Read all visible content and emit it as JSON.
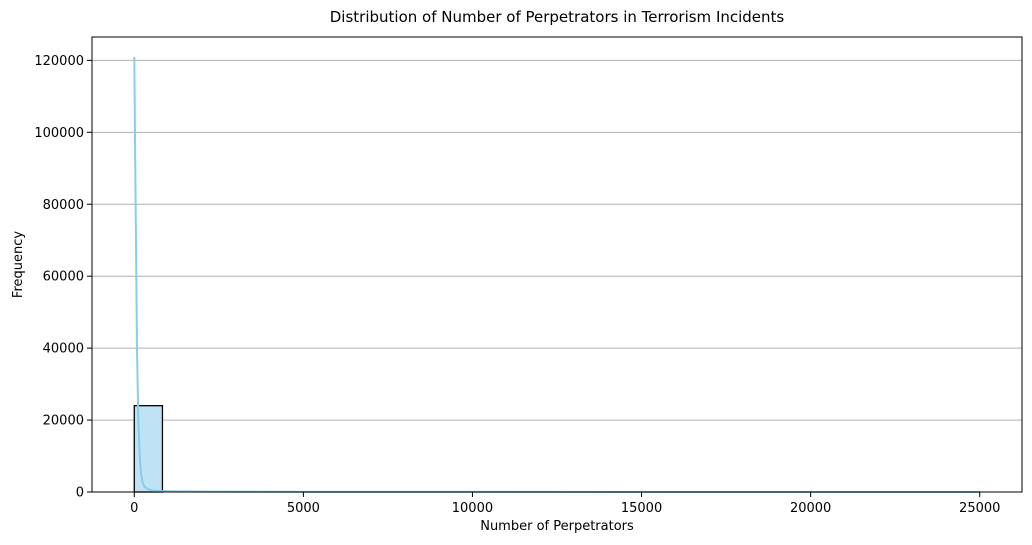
{
  "chart_data": {
    "type": "bar",
    "title": "Distribution of Number of Perpetrators in Terrorism Incidents",
    "xlabel": "Number of Perpetrators",
    "ylabel": "Frequency",
    "xlim": [
      -1250,
      26250
    ],
    "ylim": [
      0,
      126500
    ],
    "xticks": [
      0,
      5000,
      10000,
      15000,
      20000,
      25000
    ],
    "yticks": [
      0,
      20000,
      40000,
      60000,
      80000,
      100000,
      120000
    ],
    "grid": "y",
    "bins": [
      {
        "x0": 0,
        "x1": 833,
        "count": 24000
      },
      {
        "x0": 833,
        "x1": 1667,
        "count": 5
      },
      {
        "x0": 1667,
        "x1": 2500,
        "count": 3
      },
      {
        "x0": 2500,
        "x1": 3333,
        "count": 2
      },
      {
        "x0": 3333,
        "x1": 4167,
        "count": 1
      },
      {
        "x0": 9167,
        "x1": 10000,
        "count": 1
      },
      {
        "x0": 24167,
        "x1": 25000,
        "count": 1
      }
    ],
    "kde": {
      "x": [
        0,
        40,
        80,
        120,
        160,
        200,
        250,
        300,
        400,
        500,
        700,
        1000,
        2000,
        5000,
        10000,
        15000,
        20000,
        25000
      ],
      "y": [
        121000,
        80000,
        40000,
        20000,
        10000,
        5000,
        2500,
        1500,
        800,
        500,
        300,
        200,
        100,
        40,
        20,
        10,
        5,
        0
      ]
    },
    "colors": {
      "bar_fill": "#bfe3f4",
      "bar_edge": "#000000",
      "kde_line": "#87ceeb",
      "grid": "#b0b0b0"
    }
  }
}
